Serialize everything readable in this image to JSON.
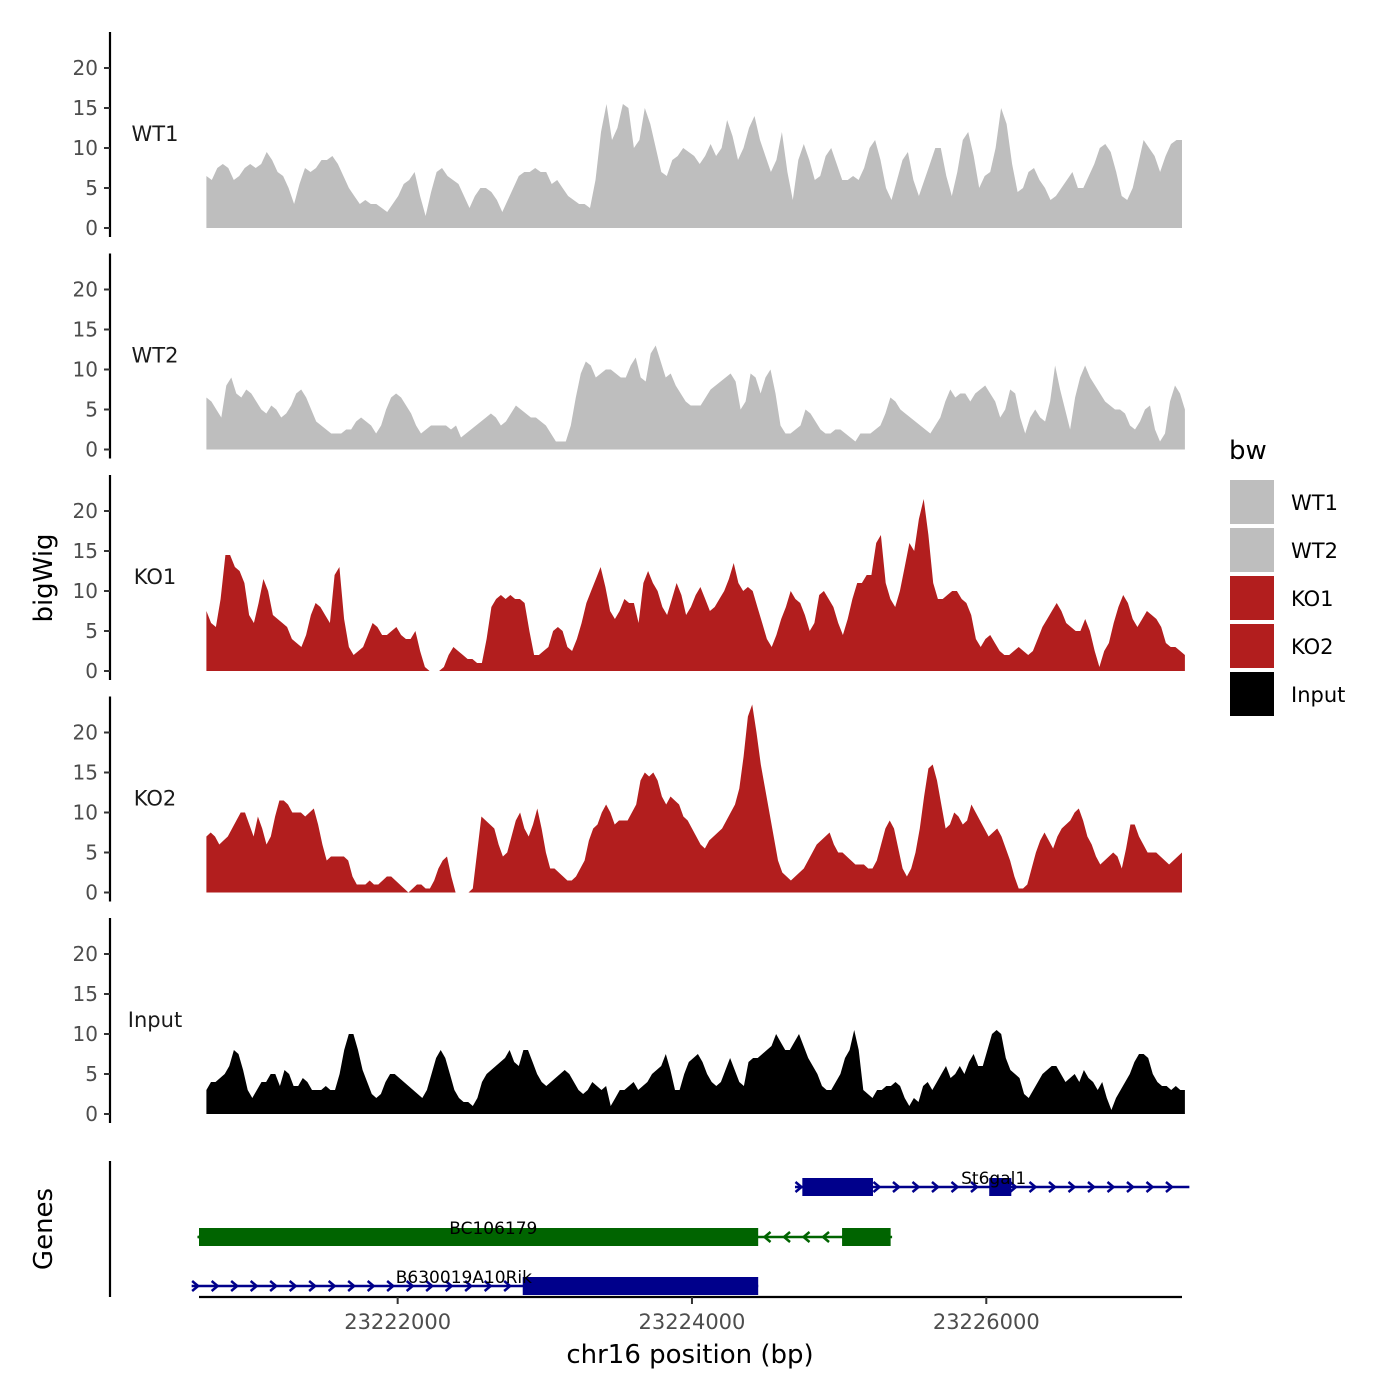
{
  "chart_data": {
    "type": "area",
    "y_axis_title": "bigWig",
    "genes_axis_title": "Genes",
    "x_axis_title": "chr16 position (bp)",
    "x_range": [
      23220650,
      23227330
    ],
    "x_ticks": [
      23222000,
      23224000,
      23226000
    ],
    "y_range": [
      0,
      24
    ],
    "y_ticks": [
      0,
      5,
      10,
      15,
      20
    ],
    "legend": {
      "title": "bw",
      "position": "right",
      "items": [
        {
          "label": "WT1",
          "color": "#BEBEBE"
        },
        {
          "label": "WT2",
          "color": "#BEBEBE"
        },
        {
          "label": "KO1",
          "color": "#B21E1E"
        },
        {
          "label": "KO2",
          "color": "#B21E1E"
        },
        {
          "label": "Input",
          "color": "#000000"
        }
      ]
    },
    "tracks": [
      {
        "name": "WT1",
        "color": "#BEBEBE",
        "x_start": 23220700,
        "x_end": 23227330,
        "values": [
          6.5,
          6,
          7.5,
          8,
          7.5,
          6,
          6.5,
          7.5,
          8,
          7.5,
          8,
          9.5,
          8.5,
          7,
          6.5,
          5,
          3,
          5.5,
          7.5,
          7,
          7.5,
          8.5,
          8.5,
          9,
          8,
          6.5,
          5,
          4,
          3,
          3.5,
          3,
          3,
          2.5,
          2,
          3,
          4,
          5.5,
          6,
          7,
          4,
          1.5,
          4.5,
          7,
          7.5,
          6.5,
          6,
          5.5,
          4,
          2.5,
          4,
          5,
          5,
          4.5,
          3.5,
          2,
          3.5,
          5,
          6.5,
          7,
          7,
          7.5,
          7,
          7,
          5.5,
          6,
          5,
          4,
          3.5,
          3,
          3,
          2.5,
          6,
          12,
          15.5,
          11,
          12.5,
          15.5,
          15,
          10,
          11,
          15,
          13,
          10,
          7,
          6.5,
          8.5,
          9,
          10,
          9.5,
          9,
          8,
          9,
          10.5,
          9,
          10,
          13.5,
          11.5,
          8.5,
          10,
          12.5,
          14,
          11,
          9,
          7,
          8.5,
          12,
          7,
          3.5,
          8.5,
          10.5,
          8.5,
          6,
          6.5,
          9,
          10,
          8,
          6,
          6,
          6.5,
          6,
          7.5,
          10,
          11,
          8.5,
          5,
          3.5,
          6,
          8.5,
          9.5,
          6,
          4,
          6,
          8,
          10,
          10,
          6.5,
          4,
          7,
          11,
          12,
          9,
          5,
          6.5,
          7,
          10,
          15,
          13,
          8,
          4.5,
          5,
          7,
          7.5,
          6,
          5,
          3.5,
          4,
          5,
          6,
          7,
          5,
          5,
          6.5,
          8,
          10,
          10.5,
          9.5,
          7,
          4,
          3.5,
          5,
          8,
          11,
          10,
          9,
          7,
          9,
          10.5,
          11,
          11
        ]
      },
      {
        "name": "WT2",
        "color": "#BEBEBE",
        "x_start": 23220700,
        "x_end": 23227350,
        "values": [
          6.5,
          6,
          5,
          4,
          8,
          9,
          7,
          6.5,
          7.5,
          7,
          6,
          5,
          4.5,
          5.5,
          5,
          4,
          4.5,
          5.5,
          7,
          7.5,
          6.5,
          5,
          3.5,
          3,
          2.5,
          2,
          2,
          2,
          2.5,
          2.5,
          3.5,
          4,
          3.5,
          3,
          2,
          3,
          5,
          6.5,
          7,
          6.5,
          5.5,
          4.5,
          3,
          2,
          2.5,
          3,
          3,
          3,
          3,
          2.5,
          3,
          1.5,
          2,
          2.5,
          3,
          3.5,
          4,
          4.5,
          4,
          3,
          3.5,
          4.5,
          5.5,
          5,
          4.5,
          4,
          4,
          3.5,
          3,
          2,
          1,
          1,
          1,
          3,
          6.5,
          9.5,
          11,
          10.5,
          9,
          9.5,
          10,
          10,
          9.5,
          9,
          9,
          10.5,
          11.5,
          9,
          8.5,
          12,
          13,
          11,
          9,
          9.5,
          8,
          7,
          6,
          5.5,
          5.5,
          5.5,
          6.5,
          7.5,
          8,
          8.5,
          9,
          9.5,
          8.5,
          5,
          6,
          9.5,
          9,
          7,
          9,
          10,
          7,
          3,
          2,
          2,
          2.5,
          3,
          5,
          4.5,
          3.5,
          2.5,
          2,
          2,
          2.5,
          2.5,
          2,
          1.5,
          1,
          2,
          2,
          2,
          2.5,
          3,
          4.5,
          6.5,
          6,
          5,
          4.5,
          4,
          3.5,
          3,
          2.5,
          2,
          3,
          4,
          6,
          7.5,
          6.5,
          7,
          7,
          6,
          7,
          7.5,
          8,
          7,
          6,
          4,
          5,
          7.5,
          7,
          4,
          2,
          4,
          5,
          4,
          3.5,
          6,
          10.5,
          7.5,
          5,
          2.5,
          6.5,
          9,
          10.5,
          9,
          8,
          7,
          6,
          5.5,
          5,
          5,
          4.5,
          3,
          2.5,
          3.5,
          5,
          5.5,
          2.5,
          1,
          2,
          6,
          8,
          7,
          5
        ]
      },
      {
        "name": "KO1",
        "color": "#B21E1E",
        "x_start": 23220700,
        "x_end": 23227350,
        "values": [
          7.5,
          6,
          5.5,
          9,
          14.5,
          14.5,
          13,
          12.5,
          11,
          7,
          6,
          8.5,
          11.5,
          10,
          7,
          6.5,
          6,
          5.5,
          4,
          3.5,
          3,
          4.5,
          7,
          8.5,
          8,
          7,
          6,
          12,
          13,
          6.5,
          3,
          2,
          2.5,
          3,
          4.5,
          6,
          5.5,
          4.5,
          4.5,
          5,
          5.5,
          4.5,
          4,
          4,
          5,
          2.5,
          0.5,
          0,
          0,
          0,
          0.5,
          2,
          3,
          2.5,
          2,
          1.5,
          1.5,
          1,
          1,
          4,
          8,
          9,
          9.5,
          9,
          9.5,
          9,
          9,
          8.5,
          5,
          2,
          2,
          2.5,
          3,
          5,
          5.5,
          5,
          3,
          2.5,
          4,
          6,
          8.5,
          10,
          11.5,
          13,
          10.5,
          7.5,
          6.5,
          7.5,
          9,
          8.5,
          8.5,
          6,
          11,
          12.5,
          11,
          10,
          8,
          7,
          9,
          11,
          9.5,
          7,
          8,
          9.5,
          10.5,
          9,
          7.5,
          8,
          9,
          10,
          11.5,
          13.5,
          11,
          10,
          10.5,
          10,
          8,
          6,
          4,
          3,
          4.5,
          6.5,
          8,
          10,
          9,
          8.5,
          7,
          5,
          6,
          9.5,
          10,
          9,
          8,
          6,
          4.5,
          6.5,
          9,
          11,
          11,
          12,
          12,
          16,
          17,
          11,
          9,
          8,
          10,
          13,
          16,
          15,
          19,
          21.5,
          17,
          11,
          9,
          9,
          9.5,
          10,
          10,
          9,
          8.5,
          7,
          4,
          3,
          4,
          4.5,
          3.5,
          2.5,
          2,
          2,
          2.5,
          3,
          2.5,
          2,
          2.5,
          4,
          5.5,
          6.5,
          7.5,
          8.5,
          7.5,
          6,
          5.5,
          5,
          5,
          6.5,
          5,
          2.5,
          0.5,
          2.5,
          3.5,
          6,
          8,
          9.5,
          8.5,
          6.5,
          5.5,
          6.5,
          7.5,
          7,
          6.5,
          5.5,
          3.5,
          3,
          3,
          2.5,
          2
        ]
      },
      {
        "name": "KO2",
        "color": "#B21E1E",
        "x_start": 23220700,
        "x_end": 23227330,
        "values": [
          7,
          7.5,
          7,
          6,
          6.5,
          7,
          8,
          9,
          10,
          10,
          8.5,
          7,
          9.5,
          8,
          6,
          7,
          9.5,
          11.5,
          11.5,
          11,
          10,
          10,
          10,
          9.5,
          10,
          10.5,
          8.5,
          6,
          4,
          4.5,
          4.5,
          4.5,
          4.5,
          4,
          2,
          1,
          1,
          1,
          1.5,
          1,
          1,
          1.5,
          2,
          2,
          1.5,
          1,
          0.5,
          0,
          0.5,
          1,
          1,
          0.5,
          0.5,
          1.5,
          3,
          4,
          4.5,
          2,
          0,
          0,
          0,
          0,
          0.5,
          5,
          9.5,
          9,
          8.5,
          8,
          6,
          4.5,
          5,
          7,
          9,
          10,
          8,
          7,
          8.5,
          10.5,
          8,
          5,
          3,
          3,
          2.5,
          2,
          1.5,
          1.5,
          2,
          3,
          4,
          6.5,
          8,
          8.5,
          10,
          11,
          10,
          8.5,
          9,
          9,
          9,
          10,
          11,
          14,
          15,
          14.5,
          15,
          14,
          12,
          11,
          12,
          11.5,
          11,
          9.5,
          9,
          8,
          7,
          6,
          5.5,
          6.5,
          7,
          7.5,
          8,
          9,
          10,
          11,
          13,
          17,
          22,
          23.5,
          20,
          16,
          13,
          10,
          7,
          4,
          2.5,
          2,
          1.5,
          2,
          2.5,
          3,
          4,
          5,
          6,
          6.5,
          7,
          7.5,
          6,
          5,
          5,
          4.5,
          4,
          3.5,
          3.5,
          3.5,
          3,
          3,
          4,
          6,
          8,
          9,
          8,
          5.5,
          3,
          2,
          3,
          5,
          8,
          12,
          15.5,
          16,
          14,
          11,
          8,
          8.5,
          10,
          9.5,
          8.5,
          9,
          11,
          10,
          9,
          8,
          7,
          7.5,
          8,
          7,
          5.5,
          4,
          2,
          0.5,
          0.5,
          1,
          3,
          5,
          6.5,
          7.5,
          6.5,
          5.5,
          7,
          8,
          8.5,
          9,
          10,
          10.5,
          9,
          7,
          6,
          4.5,
          3.5,
          4,
          4.5,
          5,
          4.5,
          3,
          5.5,
          8.5,
          8.5,
          7,
          6,
          5,
          5,
          5,
          4.5,
          4,
          3.5,
          4,
          4.5,
          5
        ]
      },
      {
        "name": "Input",
        "color": "#000000",
        "x_start": 23220700,
        "x_end": 23227350,
        "values": [
          3,
          4,
          4,
          4.5,
          5,
          6,
          8,
          7.5,
          5.5,
          3,
          2,
          3,
          4,
          4,
          5,
          5,
          3.5,
          5.5,
          5,
          3.5,
          3.5,
          4.5,
          4,
          3,
          3,
          3,
          3.5,
          3,
          3,
          5,
          8,
          10,
          10,
          8,
          5.5,
          4,
          2.5,
          2,
          2.5,
          4,
          5,
          5,
          4.5,
          4,
          3.5,
          3,
          2.5,
          2,
          3,
          5,
          7,
          8,
          7,
          5,
          3,
          2,
          1.5,
          1.5,
          1,
          2,
          4,
          5,
          5.5,
          6,
          6.5,
          7,
          8,
          6.5,
          6,
          8,
          8,
          6.5,
          5,
          4,
          3.5,
          4,
          4.5,
          5,
          5.5,
          5,
          4,
          3,
          2.5,
          3,
          4,
          3.5,
          3,
          3.5,
          1,
          2,
          3,
          3,
          3.5,
          4,
          3,
          3.5,
          4,
          5,
          5.5,
          6,
          7.5,
          5.5,
          3,
          3,
          5,
          6.5,
          7,
          7.5,
          6.5,
          5,
          4,
          3.5,
          4,
          5.5,
          7,
          5.5,
          4,
          3.5,
          6.5,
          7,
          7,
          7.5,
          8,
          8.5,
          10,
          9,
          8,
          8,
          9,
          10,
          8.5,
          7,
          6,
          5,
          3.5,
          3,
          3,
          4,
          5,
          7,
          8,
          10.5,
          8,
          3,
          2.5,
          2,
          3,
          3,
          3.5,
          3.5,
          4,
          3.5,
          2,
          1,
          2,
          1.5,
          3.5,
          4,
          3,
          4,
          5,
          6,
          4.5,
          5,
          6,
          5,
          6.5,
          7.5,
          6,
          6,
          8,
          10,
          10.5,
          10,
          7,
          5.5,
          5,
          4.5,
          2.5,
          2,
          3,
          4,
          5,
          5.5,
          6,
          6,
          5,
          4,
          4.5,
          5,
          4,
          5.5,
          4.5,
          4,
          3,
          4,
          2,
          0.5,
          2,
          3,
          4,
          5,
          6.5,
          7.5,
          7.5,
          7,
          5,
          4,
          3.5,
          3.5,
          3,
          3.5,
          3,
          3
        ]
      }
    ],
    "genes": [
      {
        "name": "St6gal1",
        "strand": "+",
        "color": "#00008B",
        "line": [
          23224700,
          23227380
        ],
        "blocks": [
          [
            23224750,
            23225230
          ],
          [
            23226020,
            23226170
          ]
        ],
        "label_x": 23226050
      },
      {
        "name": "BC106179",
        "strand": "-",
        "color": "#006400",
        "line": [
          23220640,
          23225360
        ],
        "blocks": [
          [
            23220650,
            23224450
          ],
          [
            23225020,
            23225350
          ]
        ],
        "label_x": 23222650
      },
      {
        "name": "B630019A10Rik",
        "strand": "+",
        "color": "#00008B",
        "line": [
          23220600,
          23224450
        ],
        "blocks": [
          [
            23222850,
            23224450
          ]
        ],
        "label_x": 23222450
      }
    ]
  }
}
